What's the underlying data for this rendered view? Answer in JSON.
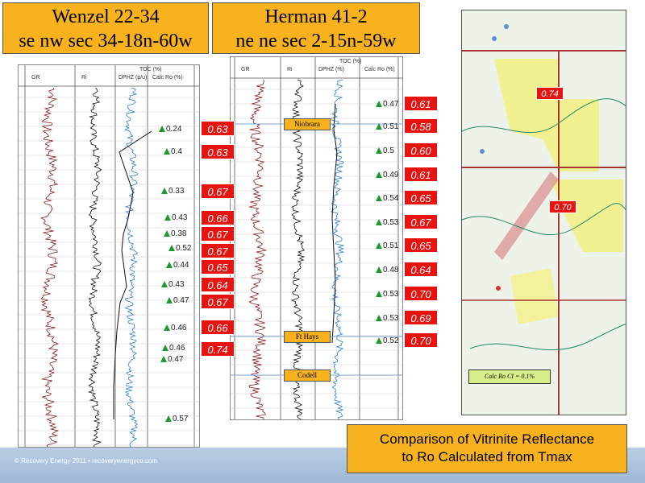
{
  "left": {
    "title": "Wenzel 22-34",
    "location": "se nw sec 34-18n-60w",
    "headers": [
      "GR",
      "Ri",
      "DPHZ (p/u)",
      "TOC (%)",
      "Calc Ro (%)"
    ],
    "measured": [
      "0.24",
      "0.4",
      "0.33",
      "0.43",
      "0.38",
      "0.52",
      "0.44",
      "0.43",
      "0.47",
      "0.46",
      "0.46",
      "0.47",
      "0.57"
    ],
    "calculated": [
      "0.63",
      "0.63",
      "0.67",
      "0.66",
      "0.67",
      "0.67",
      "0.65",
      "0.64",
      "0.67",
      "0.66",
      "0.74"
    ]
  },
  "right": {
    "title": "Herman 41-2",
    "location": "ne ne sec 2-15n-59w",
    "headers": [
      "GR",
      "Ri",
      "DPHZ (%)",
      "TOC (%)",
      "Calc Ro (%)"
    ],
    "formations": [
      "Niobrara",
      "Ft Hays",
      "Codell"
    ],
    "measured": [
      "0.47",
      "0.51",
      "0.5",
      "0.49",
      "0.54",
      "0.53",
      "0.51",
      "0.48",
      "0.53",
      "0.53",
      "0.52"
    ],
    "calculated": [
      "0.61",
      "0.58",
      "0.60",
      "0.61",
      "0.65",
      "0.67",
      "0.65",
      "0.64",
      "0.70",
      "0.69",
      "0.70"
    ]
  },
  "map": {
    "labels": [
      "0.74",
      "0.70"
    ],
    "legend": "Calc Ro  CI = 0.1%"
  },
  "caption": {
    "line1": "Comparison of Vitrinite Reflectance",
    "line2": "to Ro Calculated from Tmax"
  },
  "footer": "© Recovery Energy 2011 • recoveryenergyco.com"
}
